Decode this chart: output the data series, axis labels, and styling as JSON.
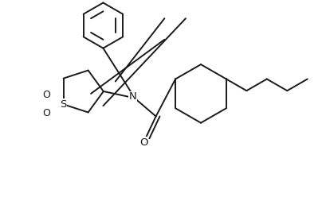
{
  "background_color": "#ffffff",
  "line_color": "#1a1a1a",
  "line_width": 1.4,
  "figsize": [
    4.1,
    2.48
  ],
  "dpi": 100,
  "xlim": [
    0,
    10
  ],
  "ylim": [
    0,
    6
  ]
}
